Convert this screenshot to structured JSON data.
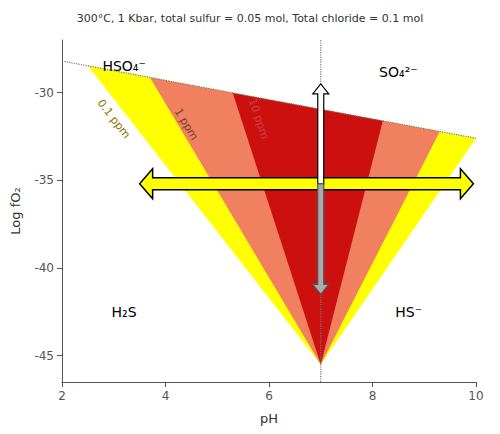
{
  "chart_data": {
    "type": "polygon",
    "title": "300°C, 1 Kbar, total sulfur = 0.05 mol, Total chloride = 0.1 mol",
    "xlabel": "pH",
    "ylabel": "Log fO₂",
    "xlim": [
      2,
      10
    ],
    "ylim": [
      -46.5,
      -27
    ],
    "xticks": [
      2,
      4,
      6,
      8,
      10
    ],
    "yticks": [
      -30,
      -35,
      -40,
      -45
    ],
    "grid": false,
    "polygons": [
      {
        "label": "0.1 ppm",
        "color": "#FFFF00",
        "label_color": "#887700",
        "label_x": 3.0,
        "label_y": -31.5,
        "x": [
          2.5,
          10.0,
          7.0
        ],
        "y": [
          -28.475,
          -32.6,
          -45.5
        ]
      },
      {
        "label": "1 ppm",
        "color": "#F08060",
        "label_color": "#774433",
        "label_x": 4.4,
        "label_y": -31.8,
        "x": [
          3.7,
          9.3,
          7.0
        ],
        "y": [
          -29.135,
          -32.215,
          -45.5
        ]
      },
      {
        "label": "10 ppm",
        "color": "#CC1010",
        "label_color": "#cc4444",
        "label_x": 5.8,
        "label_y": -31.5,
        "x": [
          5.3,
          8.2,
          7.0
        ],
        "y": [
          -30.015,
          -31.61,
          -45.5
        ]
      }
    ],
    "lines": [
      {
        "color": "#777777",
        "line_style": "dotted",
        "x": [
          2,
          10
        ],
        "y": [
          -28.2,
          -32.6
        ]
      },
      {
        "color": "#777777",
        "line_style": "dotted",
        "x": [
          7.0,
          7.0
        ],
        "y": [
          -46.5,
          -27
        ]
      }
    ],
    "annotations": [
      {
        "text": "H₂S",
        "x": 3.2,
        "y": -42.5
      },
      {
        "text": "HS⁻",
        "x": 8.7,
        "y": -42.5
      },
      {
        "text": "HSO₄⁻",
        "x": 3.2,
        "y": -28.5
      },
      {
        "text": "SO₄²⁻",
        "x": 8.5,
        "y": -28.8
      }
    ],
    "arrows": [
      {
        "color": "#FFFF00",
        "edge_color": "black",
        "x": [
          9.95,
          3.5
        ],
        "y": [
          -35.2,
          -35.2
        ]
      },
      {
        "color": "#FFFF00",
        "edge_color": "black",
        "x": [
          3.5,
          9.95
        ],
        "y": [
          -35.2,
          -35.2
        ]
      },
      {
        "color": "white",
        "edge_color": "black",
        "x": [
          7.0,
          7.0
        ],
        "y": [
          -35.2,
          -29.5
        ]
      },
      {
        "color": "#aaaaaa",
        "edge_color": "#555555",
        "x": [
          7.0,
          7.0
        ],
        "y": [
          -35.2,
          -41.5
        ]
      }
    ]
  }
}
